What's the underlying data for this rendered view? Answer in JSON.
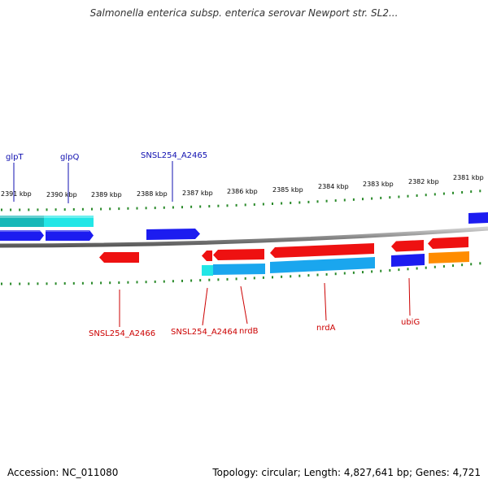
{
  "title": "Salmonella enterica subsp. enterica serovar Newport str. SL2...",
  "footer": {
    "accession": "Accession: NC_011080",
    "summary": "Topology: circular; Length: 4,827,641 bp; Genes: 4,721"
  },
  "colors": {
    "forward_gene": "#1c1cf0",
    "reverse_gene": "#ee1111",
    "forward_cds": "#17d0d0",
    "reverse_cds": "#1aa6ee",
    "rna_gene": "#ff8c00",
    "tick": "#2a8a2a",
    "backbone": "#8a8a8a",
    "label_forward": "#1010b0",
    "label_reverse": "#cc0000"
  },
  "scale": {
    "tick_labels": [
      "2391 kbp",
      "2390 kbp",
      "2389 kbp",
      "2388 kbp",
      "2387 kbp",
      "2386 kbp",
      "2385 kbp",
      "2384 kbp",
      "2383 kbp",
      "2382 kbp",
      "2381 kbp"
    ]
  },
  "gene_labels": {
    "glpT": "glpT",
    "glpQ": "glpQ",
    "a2465": "SNSL254_A2465",
    "a2466": "SNSL254_A2466",
    "a2464": "SNSL254_A2464",
    "nrdB": "nrdB",
    "nrdA": "nrdA",
    "ubiG": "ubiG"
  }
}
